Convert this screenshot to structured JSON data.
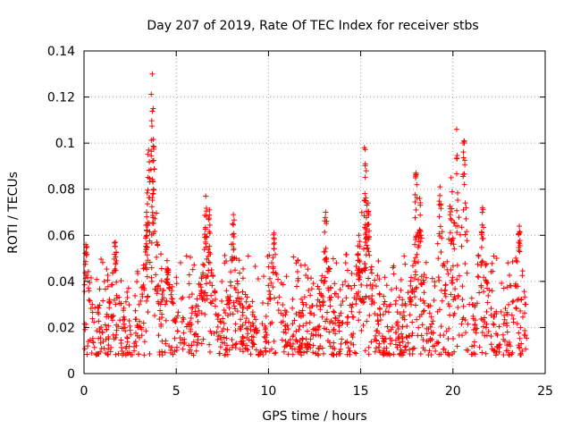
{
  "chart_data": {
    "type": "scatter",
    "title": "Day 207 of 2019, Rate Of TEC Index for receiver stbs",
    "xlabel": "GPS time / hours",
    "ylabel": "ROTI / TECUs",
    "xlim": [
      0,
      25
    ],
    "ylim": [
      0,
      0.14
    ],
    "x_ticks": [
      0,
      5,
      10,
      15,
      20,
      25
    ],
    "y_ticks": [
      0,
      0.02,
      0.04,
      0.06,
      0.08,
      0.1,
      0.12,
      0.14
    ],
    "x_tick_labels": [
      "0",
      "5",
      "10",
      "15",
      "20",
      "25"
    ],
    "y_tick_labels": [
      "0",
      "0.02",
      "0.04",
      "0.06",
      "0.08",
      "0.1",
      "0.12",
      "0.14"
    ],
    "grid": true,
    "marker": "+",
    "color": "#ff0000",
    "x_data_range": [
      0,
      24
    ],
    "typical_band": [
      0.008,
      0.03
    ],
    "peaks": [
      {
        "x": 0.1,
        "y": 0.056
      },
      {
        "x": 1.7,
        "y": 0.057
      },
      {
        "x": 3.4,
        "y": 0.068
      },
      {
        "x": 3.5,
        "y": 0.097
      },
      {
        "x": 3.7,
        "y": 0.13
      },
      {
        "x": 3.75,
        "y": 0.115
      },
      {
        "x": 4.5,
        "y": 0.049
      },
      {
        "x": 6.6,
        "y": 0.077
      },
      {
        "x": 6.8,
        "y": 0.071
      },
      {
        "x": 8.1,
        "y": 0.069
      },
      {
        "x": 10.3,
        "y": 0.061
      },
      {
        "x": 13.1,
        "y": 0.07
      },
      {
        "x": 14.9,
        "y": 0.06
      },
      {
        "x": 15.2,
        "y": 0.098
      },
      {
        "x": 15.3,
        "y": 0.088
      },
      {
        "x": 15.4,
        "y": 0.074
      },
      {
        "x": 18.0,
        "y": 0.087
      },
      {
        "x": 18.2,
        "y": 0.076
      },
      {
        "x": 19.3,
        "y": 0.081
      },
      {
        "x": 19.9,
        "y": 0.085
      },
      {
        "x": 20.2,
        "y": 0.106
      },
      {
        "x": 20.6,
        "y": 0.101
      },
      {
        "x": 21.6,
        "y": 0.072
      },
      {
        "x": 23.6,
        "y": 0.064
      }
    ]
  }
}
